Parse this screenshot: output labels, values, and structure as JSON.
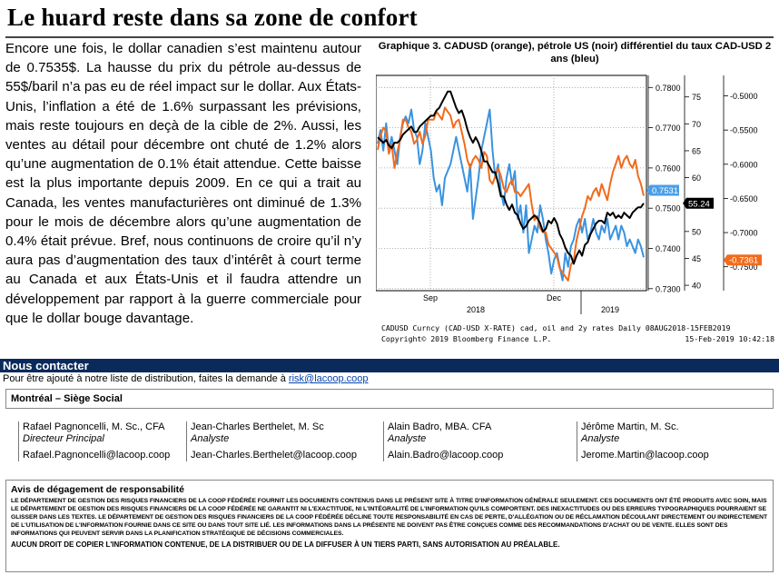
{
  "header": {
    "title": "Le huard reste dans sa zone de confort"
  },
  "article": {
    "body": "Encore une fois, le dollar canadien s’est maintenu autour de 0.7535$. La hausse du prix du pétrole au-dessus de 55$/baril n’a pas eu de réel impact sur le dollar. Aux États-Unis, l’inflation a été de 1.6% surpassant les prévisions, mais reste toujours en deçà de la cible de 2%. Aussi, les ventes au détail pour décembre ont chuté de 1.2% alors qu’une augmentation de 0.1% était attendue. Cette baisse est la plus importante depuis 2009. En ce qui a trait au Canada, les ventes manufacturières ont diminué de 1.3% pour le mois de décembre alors qu’une augmentation de 0.4% était prévue. Bref, nous continuons de croire qu’il n’y aura pas d’augmentation des taux d’intérêt à court terme au Canada et aux États-Unis et il faudra attendre un développement par rapport à la guerre commerciale pour que le dollar bouge davantage."
  },
  "chart_title": "Graphique 3. CADUSD (orange), pétrole US (noir) différentiel du taux CAD-USD 2 ans (bleu)",
  "chart_footer": {
    "line1": "CADUSD Curncy (CAD-USD X-RATE) cad, oil and 2y rates  Daily 08AUG2018-15FEB2019",
    "line2_left": "Copyright© 2019 Bloomberg Finance L.P.",
    "line2_right": "15-Feb-2019 10:42:18"
  },
  "chart_data": {
    "type": "line",
    "x_tick_labels": [
      "Sep",
      "Dec"
    ],
    "x_period_labels": [
      "2018",
      "2019"
    ],
    "axes": {
      "cadusd": {
        "ticks": [
          "0.7800",
          "0.7700",
          "0.7600",
          "0.7500",
          "0.7400",
          "0.7300"
        ],
        "range": [
          0.7295,
          0.783
        ]
      },
      "oil": {
        "ticks": [
          "75",
          "70",
          "65",
          "60",
          "55",
          "50",
          "45",
          "40"
        ],
        "range": [
          39,
          79
        ]
      },
      "rate_diff": {
        "ticks": [
          "-0.5000",
          "-0.5500",
          "-0.6000",
          "-0.6500",
          "-0.7000",
          "-0.7500"
        ],
        "range": [
          -0.785,
          -0.47
        ]
      }
    },
    "last_value_labels": {
      "cadusd": "0.7531",
      "oil": "55.24",
      "rate_diff": "-0.7361"
    },
    "colors": {
      "cadusd": "#f26b1d",
      "oil": "#000000",
      "rate_diff": "#3a93e0",
      "cadusd_label_bg": "#4a9fe8",
      "oil_label_bg": "#000000",
      "rate_label_bg": "#f26b1d"
    },
    "series": [
      {
        "axis": "cadusd",
        "values": [
          0.7645,
          0.768,
          0.77,
          0.769,
          0.7635,
          0.766,
          0.76,
          0.764,
          0.767,
          0.772,
          0.772,
          0.77,
          0.769,
          0.766,
          0.767,
          0.769,
          0.766,
          0.768,
          0.772,
          0.772,
          0.772,
          0.774,
          0.773,
          0.772,
          0.775,
          0.774,
          0.773,
          0.77,
          0.7715,
          0.772,
          0.769,
          0.766,
          0.762,
          0.76,
          0.762,
          0.763,
          0.762,
          0.76,
          0.764,
          0.763,
          0.757,
          0.756,
          0.758,
          0.76,
          0.758,
          0.755,
          0.754,
          0.756,
          0.757,
          0.754,
          0.754,
          0.753,
          0.754,
          0.755,
          0.756,
          0.751,
          0.747,
          0.748,
          0.745,
          0.744,
          0.744,
          0.741,
          0.74,
          0.739,
          0.738,
          0.735,
          0.734,
          0.733,
          0.732,
          0.736,
          0.737,
          0.742,
          0.745,
          0.748,
          0.75,
          0.753,
          0.752,
          0.754,
          0.755,
          0.753,
          0.756,
          0.754,
          0.752,
          0.756,
          0.759,
          0.761,
          0.763,
          0.76,
          0.762,
          0.763,
          0.761,
          0.76,
          0.762,
          0.758,
          0.756,
          0.7531
        ]
      },
      {
        "axis": "oil",
        "values": [
          67.5,
          67.0,
          66.5,
          67.0,
          66.0,
          65.5,
          66.5,
          66.5,
          67.0,
          68.0,
          68.5,
          69.0,
          69.5,
          68.5,
          68.5,
          69.5,
          70.0,
          70.5,
          71.0,
          71.5,
          71.5,
          72.5,
          73.0,
          74.0,
          75.0,
          76.0,
          76.0,
          74.5,
          73.0,
          72.0,
          72.5,
          71.0,
          69.0,
          67.5,
          66.5,
          67.5,
          66.5,
          65.0,
          63.0,
          63.0,
          62.0,
          61.0,
          61.0,
          59.0,
          56.5,
          56.5,
          55.0,
          54.0,
          55.0,
          53.5,
          53.0,
          51.5,
          50.5,
          51.0,
          52.0,
          52.5,
          53.0,
          52.5,
          51.5,
          50.0,
          50.5,
          52.0,
          51.5,
          52.5,
          51.5,
          49.5,
          48.5,
          47.0,
          46.0,
          45.5,
          44.0,
          45.5,
          46.5,
          45.5,
          47.5,
          48.0,
          49.5,
          50.5,
          51.5,
          52.0,
          52.0,
          51.5,
          53.5,
          53.0,
          53.5,
          52.5,
          53.0,
          52.5,
          53.5,
          53.0,
          52.5,
          53.5,
          54.0,
          54.5,
          54.5,
          55.24
        ]
      },
      {
        "axis": "rate_diff",
        "values": [
          -0.57,
          -0.55,
          -0.58,
          -0.54,
          -0.58,
          -0.56,
          -0.58,
          -0.6,
          -0.56,
          -0.54,
          -0.53,
          -0.54,
          -0.52,
          -0.55,
          -0.56,
          -0.6,
          -0.58,
          -0.54,
          -0.56,
          -0.58,
          -0.62,
          -0.64,
          -0.63,
          -0.66,
          -0.62,
          -0.61,
          -0.6,
          -0.58,
          -0.56,
          -0.58,
          -0.6,
          -0.62,
          -0.64,
          -0.6,
          -0.68,
          -0.65,
          -0.62,
          -0.58,
          -0.56,
          -0.54,
          -0.52,
          -0.58,
          -0.62,
          -0.6,
          -0.64,
          -0.66,
          -0.62,
          -0.6,
          -0.63,
          -0.61,
          -0.68,
          -0.66,
          -0.7,
          -0.66,
          -0.73,
          -0.71,
          -0.69,
          -0.7,
          -0.66,
          -0.68,
          -0.71,
          -0.73,
          -0.76,
          -0.74,
          -0.73,
          -0.75,
          -0.77,
          -0.73,
          -0.75,
          -0.72,
          -0.71,
          -0.69,
          -0.68,
          -0.7,
          -0.68,
          -0.71,
          -0.7,
          -0.68,
          -0.7,
          -0.71,
          -0.69,
          -0.7,
          -0.68,
          -0.71,
          -0.7,
          -0.69,
          -0.71,
          -0.69,
          -0.7,
          -0.72,
          -0.71,
          -0.72,
          -0.73,
          -0.71,
          -0.72,
          -0.7361
        ]
      }
    ]
  },
  "contact": {
    "heading": "Nous contacter",
    "distribution_text": "Pour être ajouté à notre liste de distribution, faites la demande à ",
    "distribution_email": "risk@lacoop.coop",
    "office": "Montréal – Siège Social",
    "people": [
      {
        "name": "Rafael Pagnoncelli, M. Sc., CFA",
        "role": "Directeur Principal",
        "email": "Rafael.Pagnoncelli@lacoop.coop"
      },
      {
        "name": "Jean-Charles Berthelet, M. Sc",
        "role": "Analyste",
        "email": "Jean-Charles.Berthelet@lacoop.coop"
      },
      {
        "name": "Alain Badro, MBA. CFA",
        "role": "Analyste",
        "email": "Alain.Badro@lacoop.coop"
      },
      {
        "name": "Jérôme Martin, M. Sc.",
        "role": "Analyste",
        "email": "Jerome.Martin@lacoop.coop"
      }
    ]
  },
  "disclaimer": {
    "heading": "Avis de dégagement de responsabilité",
    "text": "LE DÉPARTEMENT DE GESTION DES RISQUES FINANCIERS DE LA COOP FÉDÉRÉE FOURNIT LES DOCUMENTS CONTENUS DANS LE PRÉSENT SITE À TITRE D'INFORMATION GÉNÉRALE SEULEMENT. CES DOCUMENTS ONT ÉTÉ PRODUITS AVEC SOIN, MAIS LE DÉPARTEMENT DE GESTION DES RISQUES FINANCIERS DE LA COOP FÉDÉRÉE NE GARANTIT NI L'EXACTITUDE, NI L'INTÉGRALITÉ DE L'INFORMATION QU'ILS COMPORTENT. DES INEXACTITUDES OU DES ERREURS TYPOGRAPHIQUES POURRAIENT SE GLISSER DANS LES TEXTES. LE DÉPARTEMENT DE GESTION DES RISQUES FINANCIERS DE LA COOP FÉDÉRÉE DÉCLINE TOUTE RESPONSABILITÉ EN CAS DE PERTE, D'ALLÉGATION OU DE RÉCLAMATION DÉCOULANT DIRECTEMENT OU INDIRECTEMENT DE L'UTILISATION DE L'INFORMATION FOURNIE DANS CE SITE OU DANS TOUT SITE LIÉ. LES INFORMATIONS DANS LA PRÉSENTE NE DOIVENT PAS ÊTRE CONÇUES COMME DES RECOMMANDATIONS D'ACHAT OU DE VENTE. ELLES SONT DES INFORMATIONS QUI PEUVENT SERVIR DANS LA PLANIFICATION STRATÉGIQUE DE DÉCISIONS COMMERCIALES.",
    "last_line": "AUCUN DROIT DE COPIER L'INFORMATION CONTENUE, DE LA DISTRIBUER OU DE LA DIFFUSER À UN TIERS PARTI, SANS AUTORISATION AU PRÉALABLE."
  }
}
